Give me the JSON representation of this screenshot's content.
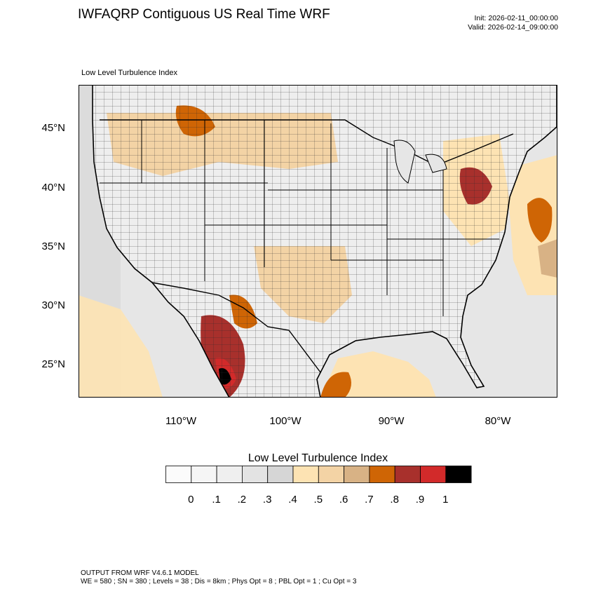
{
  "header": {
    "title": "IWFAQRP Contiguous US Real Time WRF",
    "init": "Init: 2026-02-11_00:00:00",
    "valid": "Valid: 2026-02-14_09:00:00",
    "subtitle": "Low Level Turbulence Index"
  },
  "map": {
    "lat_labels": [
      "45°N",
      "40°N",
      "35°N",
      "30°N",
      "25°N"
    ],
    "lon_labels": [
      "110°W",
      "100°W",
      "90°W",
      "80°W"
    ]
  },
  "colorbar": {
    "title": "Low Level Turbulence Index",
    "ticks": [
      "0",
      ".1",
      ".2",
      ".3",
      ".4",
      ".5",
      ".6",
      ".7",
      ".8",
      ".9",
      "1"
    ],
    "colors": [
      "#fbfbfb",
      "#f5f5f5",
      "#efefef",
      "#e3e3e3",
      "#d6d6d6",
      "#fde3b3",
      "#f3d3a5",
      "#d8b285",
      "#cf6505",
      "#a8302c",
      "#d22a2a",
      "#000000"
    ]
  },
  "footer": {
    "model": "OUTPUT FROM WRF V4.6.1 MODEL",
    "settings": "WE = 580 ; SN = 380 ; Levels = 38 ; Dis = 8km ; Phys Opt = 8 ; PBL Opt = 1 ; Cu Opt = 3"
  }
}
